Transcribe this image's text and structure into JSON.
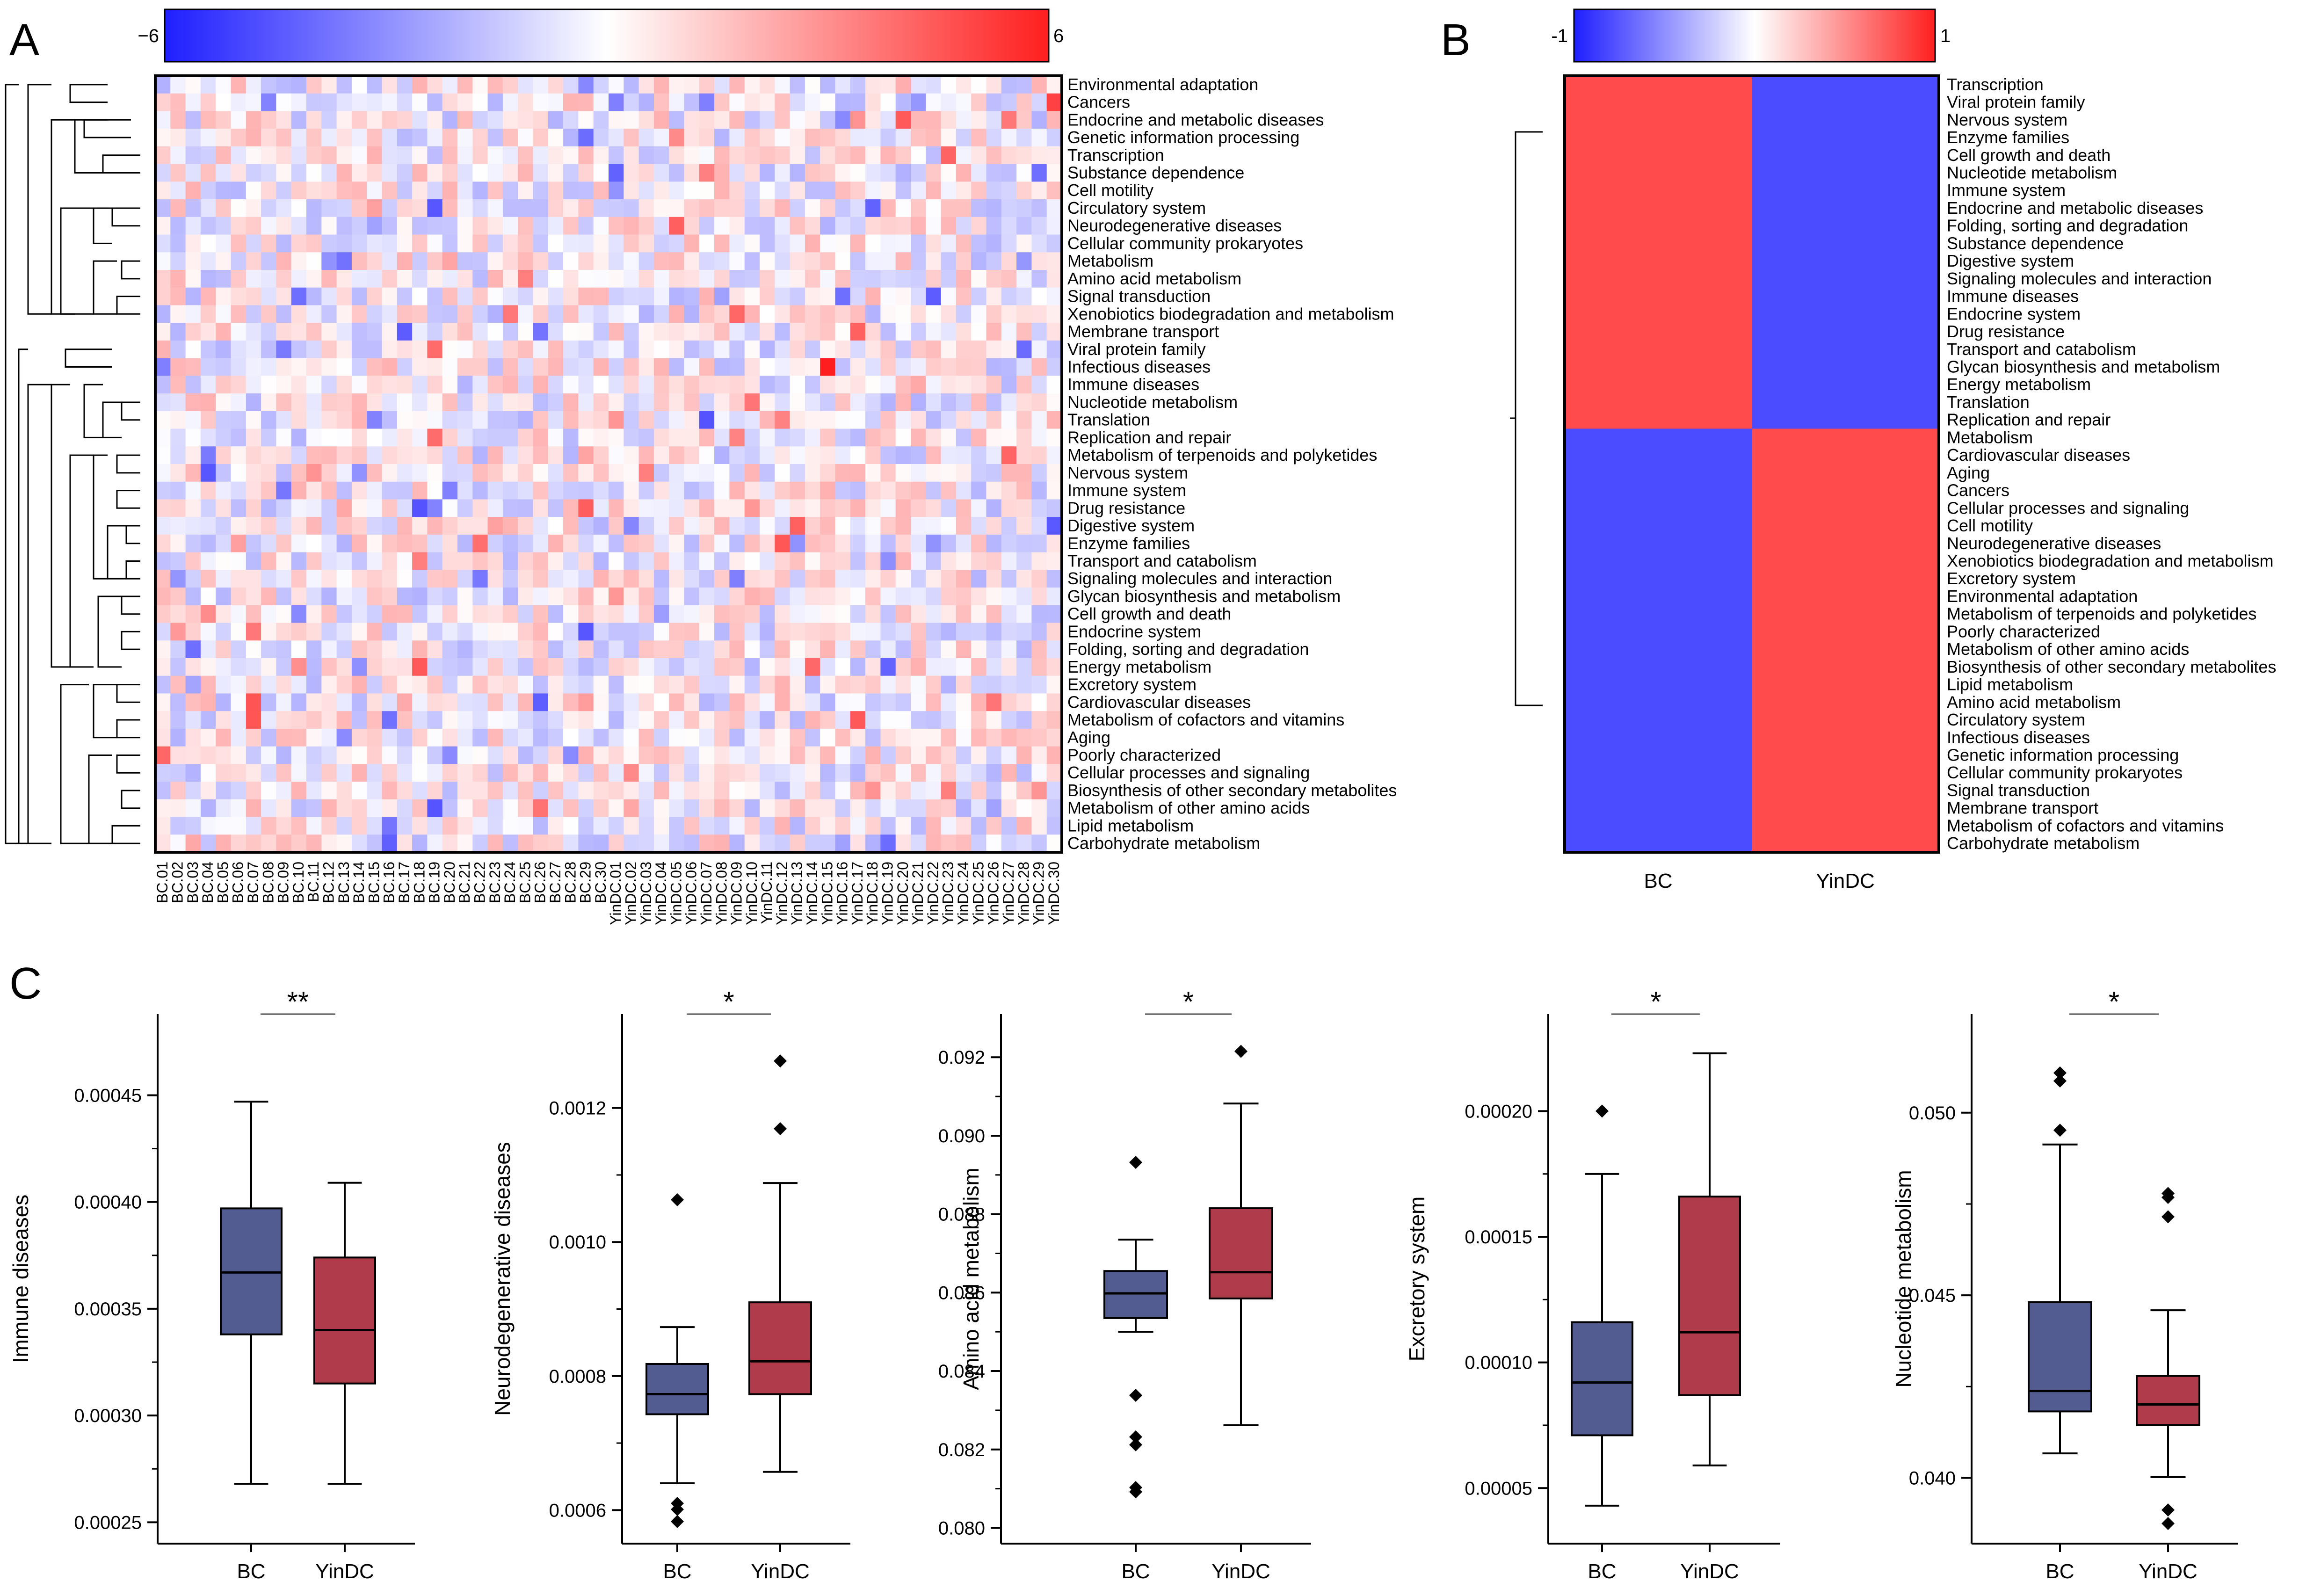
{
  "panels": {
    "a": "A",
    "b": "B",
    "c": "C"
  },
  "colors": {
    "low": "#1f1fff",
    "mid": "#ffffff",
    "high": "#ff1f1f",
    "bc_box": "#535c91",
    "yindc_box": "#b03c4b",
    "cell_red": "#ff4b4b",
    "cell_blue": "#4b4bff"
  },
  "chart_data": [
    {
      "type": "heatmap",
      "id": "A",
      "colorbar": {
        "min_label": "−6",
        "max_label": "6",
        "range": [
          -6,
          6
        ]
      },
      "rows": [
        "Environmental adaptation",
        "Cancers",
        "Endocrine and metabolic diseases",
        "Genetic information processing",
        "Transcription",
        "Substance dependence",
        "Cell motility",
        "Circulatory system",
        "Neurodegenerative diseases",
        "Cellular community   prokaryotes",
        "Metabolism",
        "Amino acid metabolism",
        "Signal transduction",
        "Xenobiotics biodegradation and metabolism",
        "Membrane transport",
        "Viral protein family",
        "Infectious diseases",
        "Immune diseases",
        "Nucleotide metabolism",
        "Translation",
        "Replication and repair",
        "Metabolism of terpenoids and polyketides",
        "Nervous system",
        "Immune system",
        "Drug resistance",
        "Digestive system",
        "Enzyme families",
        "Transport and catabolism",
        "Signaling molecules and interaction",
        "Glycan biosynthesis and metabolism",
        "Cell growth and death",
        "Endocrine system",
        "Folding, sorting and degradation",
        "Energy metabolism",
        "Excretory system",
        "Cardiovascular diseases",
        "Metabolism of cofactors and vitamins",
        "Aging",
        "Poorly characterized",
        "Cellular processes and signaling",
        "Biosynthesis of other secondary metabolites",
        "Metabolism of other amino acids",
        "Lipid metabolism",
        "Carbohydrate metabolism"
      ],
      "columns": [
        "BC.01",
        "BC.02",
        "BC.03",
        "BC.04",
        "BC.05",
        "BC.06",
        "BC.07",
        "BC.08",
        "BC.09",
        "BC.10",
        "BC.11",
        "BC.12",
        "BC.13",
        "BC.14",
        "BC.15",
        "BC.16",
        "BC.17",
        "BC.18",
        "BC.19",
        "BC.20",
        "BC.21",
        "BC.22",
        "BC.23",
        "BC.24",
        "BC.25",
        "BC.26",
        "BC.27",
        "BC.28",
        "BC.29",
        "BC.30",
        "YinDC.01",
        "YinDC.02",
        "YinDC.03",
        "YinDC.04",
        "YinDC.05",
        "YinDC.06",
        "YinDC.07",
        "YinDC.08",
        "YinDC.09",
        "YinDC.10",
        "YinDC.11",
        "YinDC.12",
        "YinDC.13",
        "YinDC.14",
        "YinDC.15",
        "YinDC.16",
        "YinDC.17",
        "YinDC.18",
        "YinDC.19",
        "YinDC.20",
        "YinDC.21",
        "YinDC.22",
        "YinDC.23",
        "YinDC.24",
        "YinDC.25",
        "YinDC.26",
        "YinDC.27",
        "YinDC.28",
        "YinDC.29",
        "YinDC.30"
      ],
      "dendrogram": "row clustering tree on left"
    },
    {
      "type": "heatmap",
      "id": "B",
      "colorbar": {
        "min_label": "-1",
        "max_label": "1",
        "range": [
          -1,
          1
        ]
      },
      "columns": [
        "BC",
        "YinDC"
      ],
      "rows": [
        "Transcription",
        "Viral protein family",
        "Nervous system",
        "Enzyme families",
        "Cell growth and death",
        "Nucleotide metabolism",
        "Immune system",
        "Endocrine and metabolic diseases",
        "Folding, sorting and degradation",
        "Substance dependence",
        "Digestive system",
        "Signaling molecules and interaction",
        "Immune diseases",
        "Endocrine system",
        "Drug resistance",
        "Transport and catabolism",
        "Glycan biosynthesis and metabolism",
        "Energy metabolism",
        "Translation",
        "Replication and repair",
        "Metabolism",
        "Cardiovascular diseases",
        "Aging",
        "Cancers",
        "Cellular processes and signaling",
        "Cell motility",
        "Neurodegenerative diseases",
        "Xenobiotics biodegradation and metabolism",
        "Excretory system",
        "Environmental adaptation",
        "Metabolism of terpenoids and polyketides",
        "Poorly characterized",
        "Metabolism of other amino acids",
        "Biosynthesis of other secondary metabolites",
        "Lipid metabolism",
        "Amino acid metabolism",
        "Circulatory system",
        "Infectious diseases",
        "Genetic information processing",
        "Cellular community   prokaryotes",
        "Signal transduction",
        "Membrane transport",
        "Metabolism of cofactors and vitamins",
        "Carbohydrate metabolism"
      ],
      "groups": [
        {
          "rows_from": 0,
          "rows_to": 19,
          "BC": 1,
          "YinDC": -1
        },
        {
          "rows_from": 20,
          "rows_to": 43,
          "BC": -1,
          "YinDC": 1
        }
      ]
    },
    {
      "type": "box",
      "id": "C1",
      "ylabel": "Immune diseases",
      "ylim": [
        0.00024,
        0.000488
      ],
      "yticks": [
        0.00025,
        0.0003,
        0.00035,
        0.0004,
        0.00045
      ],
      "ytick_labels": [
        "0.00025",
        "0.00030",
        "0.00035",
        "0.00040",
        "0.00045"
      ],
      "categories": [
        "BC",
        "YinDC"
      ],
      "significance": "**",
      "boxes": [
        {
          "name": "BC",
          "q1": 0.000338,
          "median": 0.000367,
          "q3": 0.000397,
          "whisker_low": 0.000268,
          "whisker_high": 0.000447,
          "outliers": []
        },
        {
          "name": "YinDC",
          "q1": 0.000315,
          "median": 0.00034,
          "q3": 0.000374,
          "whisker_low": 0.000268,
          "whisker_high": 0.000409,
          "outliers": []
        }
      ]
    },
    {
      "type": "box",
      "id": "C2",
      "ylabel": "Neurodegenerative diseases",
      "ylim": [
        0.00055,
        0.00134
      ],
      "yticks": [
        0.0006,
        0.0008,
        0.001,
        0.0012
      ],
      "ytick_labels": [
        "0.0006",
        "0.0008",
        "0.0010",
        "0.0012"
      ],
      "categories": [
        "BC",
        "YinDC"
      ],
      "significance": "*",
      "boxes": [
        {
          "name": "BC",
          "q1": 0.000743,
          "median": 0.000773,
          "q3": 0.000818,
          "whisker_low": 0.00064,
          "whisker_high": 0.000873,
          "outliers": [
            0.000583,
            0.000601,
            0.00061,
            0.001063
          ]
        },
        {
          "name": "YinDC",
          "q1": 0.000773,
          "median": 0.000822,
          "q3": 0.00091,
          "whisker_low": 0.000657,
          "whisker_high": 0.001088,
          "outliers": [
            0.001169,
            0.00127
          ]
        }
      ]
    },
    {
      "type": "box",
      "id": "C3",
      "ylabel": "Amino acid metabolism",
      "ylim": [
        0.0796,
        0.0931
      ],
      "yticks": [
        0.08,
        0.082,
        0.084,
        0.086,
        0.088,
        0.09,
        0.092
      ],
      "ytick_labels": [
        "0.080",
        "0.082",
        "0.084",
        "0.086",
        "0.088",
        "0.090",
        "0.092"
      ],
      "categories": [
        "BC",
        "YinDC"
      ],
      "significance": "*",
      "boxes": [
        {
          "name": "BC",
          "q1": 0.08535,
          "median": 0.08598,
          "q3": 0.08655,
          "whisker_low": 0.085,
          "whisker_high": 0.08735,
          "outliers": [
            0.08092,
            0.08103,
            0.08212,
            0.08232,
            0.08338,
            0.08932
          ]
        },
        {
          "name": "YinDC",
          "q1": 0.08585,
          "median": 0.08652,
          "q3": 0.08815,
          "whisker_low": 0.08262,
          "whisker_high": 0.09082,
          "outliers": [
            0.09215
          ]
        }
      ]
    },
    {
      "type": "box",
      "id": "C4",
      "ylabel": "Excretory system",
      "ylim": [
        2.79e-05,
        0.0002386
      ],
      "yticks": [
        5e-05,
        0.0001,
        0.00015,
        0.0002
      ],
      "ytick_labels": [
        "0.00005",
        "0.00010",
        "0.00015",
        "0.00020"
      ],
      "categories": [
        "BC",
        "YinDC"
      ],
      "significance": "*",
      "boxes": [
        {
          "name": "BC",
          "q1": 7.1e-05,
          "median": 9.2e-05,
          "q3": 0.000116,
          "whisker_low": 4.3e-05,
          "whisker_high": 0.000175,
          "outliers": [
            0.0002
          ]
        },
        {
          "name": "YinDC",
          "q1": 8.7e-05,
          "median": 0.000112,
          "q3": 0.000166,
          "whisker_low": 5.9e-05,
          "whisker_high": 0.000223,
          "outliers": []
        }
      ]
    },
    {
      "type": "box",
      "id": "C5",
      "ylabel": "Nucleotide metabolism",
      "ylim": [
        0.0382,
        0.0527
      ],
      "yticks": [
        0.04,
        0.045,
        0.05
      ],
      "ytick_labels": [
        "0.040",
        "0.045",
        "0.050"
      ],
      "categories": [
        "BC",
        "YinDC"
      ],
      "significance": "*",
      "boxes": [
        {
          "name": "BC",
          "q1": 0.04182,
          "median": 0.04238,
          "q3": 0.04481,
          "whisker_low": 0.04067,
          "whisker_high": 0.04913,
          "outliers": [
            0.04952,
            0.05087,
            0.05109
          ]
        },
        {
          "name": "YinDC",
          "q1": 0.04145,
          "median": 0.04201,
          "q3": 0.04279,
          "whisker_low": 0.04002,
          "whisker_high": 0.04459,
          "outliers": [
            0.03875,
            0.03912,
            0.04715,
            0.04768,
            0.04779
          ]
        }
      ]
    }
  ]
}
